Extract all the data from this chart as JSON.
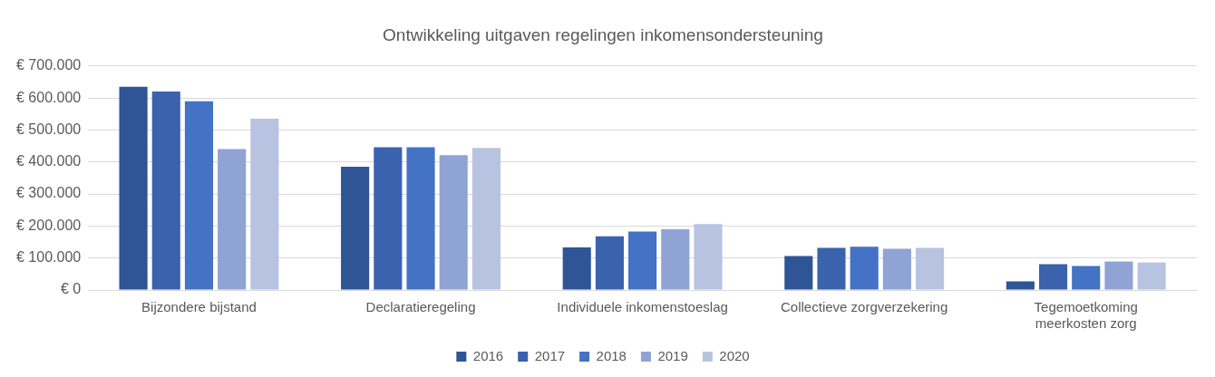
{
  "chart_data": {
    "type": "bar",
    "title": "Ontwikkeling uitgaven regelingen inkomensondersteuning",
    "categories": [
      "Bijzondere bijstand",
      "Declaratieregeling",
      "Individuele inkomenstoeslag",
      "Collectieve zorgverzekering",
      "Tegemoetkoming meerkosten zorg"
    ],
    "series": [
      {
        "name": "2016",
        "color": "#2f5597",
        "values": [
          635000,
          385000,
          133000,
          106000,
          27000
        ]
      },
      {
        "name": "2017",
        "color": "#3a62ad",
        "values": [
          620000,
          446000,
          168000,
          132000,
          81000
        ]
      },
      {
        "name": "2018",
        "color": "#4472c4",
        "values": [
          590000,
          446000,
          183000,
          135000,
          75000
        ]
      },
      {
        "name": "2019",
        "color": "#8fa3d4",
        "values": [
          440000,
          421000,
          190000,
          129000,
          89000
        ]
      },
      {
        "name": "2020",
        "color": "#b8c3e2",
        "values": [
          535000,
          444000,
          206000,
          132000,
          86000
        ]
      }
    ],
    "ylim": [
      0,
      700000
    ],
    "yticks": [
      {
        "value": 0,
        "label": "€ 0"
      },
      {
        "value": 100000,
        "label": "€ 100.000"
      },
      {
        "value": 200000,
        "label": "€ 200.000"
      },
      {
        "value": 300000,
        "label": "€ 300.000"
      },
      {
        "value": 400000,
        "label": "€ 400.000"
      },
      {
        "value": 500000,
        "label": "€ 500.000"
      },
      {
        "value": 600000,
        "label": "€ 600.000"
      },
      {
        "value": 700000,
        "label": "€ 700.000"
      }
    ],
    "grid": "y",
    "legend": "bottom"
  }
}
